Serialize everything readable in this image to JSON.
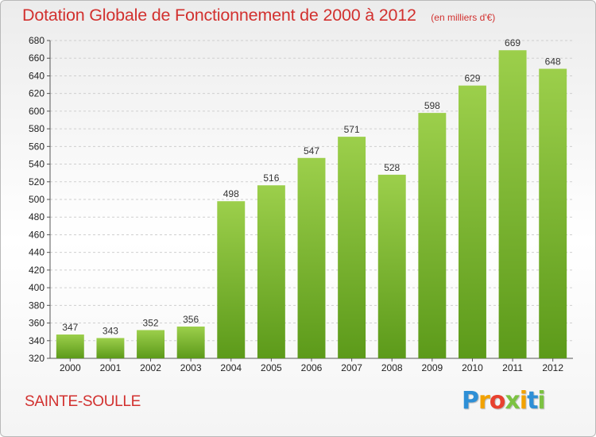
{
  "header": {
    "title": "Dotation Globale de Fonctionnement de 2000 à 2012",
    "subtitle": "(en milliers d'€)"
  },
  "footer": {
    "commune": "SAINTE-SOULLE",
    "brand": {
      "text": "Proxiti",
      "letters": [
        {
          "ch": "P",
          "color": "#2e8fd6"
        },
        {
          "ch": "r",
          "color": "#f2a200"
        },
        {
          "ch": "o",
          "color": "#e8412f"
        },
        {
          "ch": "x",
          "color": "#7cc242"
        },
        {
          "ch": "i",
          "color": "#f2a200"
        },
        {
          "ch": "t",
          "color": "#2e8fd6"
        },
        {
          "ch": "i",
          "color": "#7cc242"
        }
      ]
    }
  },
  "colors": {
    "title": "#d2312f",
    "bar_top": "#9ccf4b",
    "bar_bottom": "#5c9a1a",
    "grid": "#cfcfcf",
    "axis": "#555555"
  },
  "chart_data": {
    "type": "bar",
    "title": "Dotation Globale de Fonctionnement de 2000 à 2012",
    "subtitle": "(en milliers d'€)",
    "xlabel": "",
    "ylabel": "",
    "categories": [
      "2000",
      "2001",
      "2002",
      "2003",
      "2004",
      "2005",
      "2006",
      "2007",
      "2008",
      "2009",
      "2010",
      "2011",
      "2012"
    ],
    "values": [
      347,
      343,
      352,
      356,
      498,
      516,
      547,
      571,
      528,
      598,
      629,
      669,
      648
    ],
    "ylim": [
      320,
      680
    ],
    "yticks": [
      320,
      340,
      360,
      380,
      400,
      420,
      440,
      460,
      480,
      500,
      520,
      540,
      560,
      580,
      600,
      620,
      640,
      660,
      680
    ],
    "grid": true,
    "legend": "none",
    "data_labels": true
  }
}
